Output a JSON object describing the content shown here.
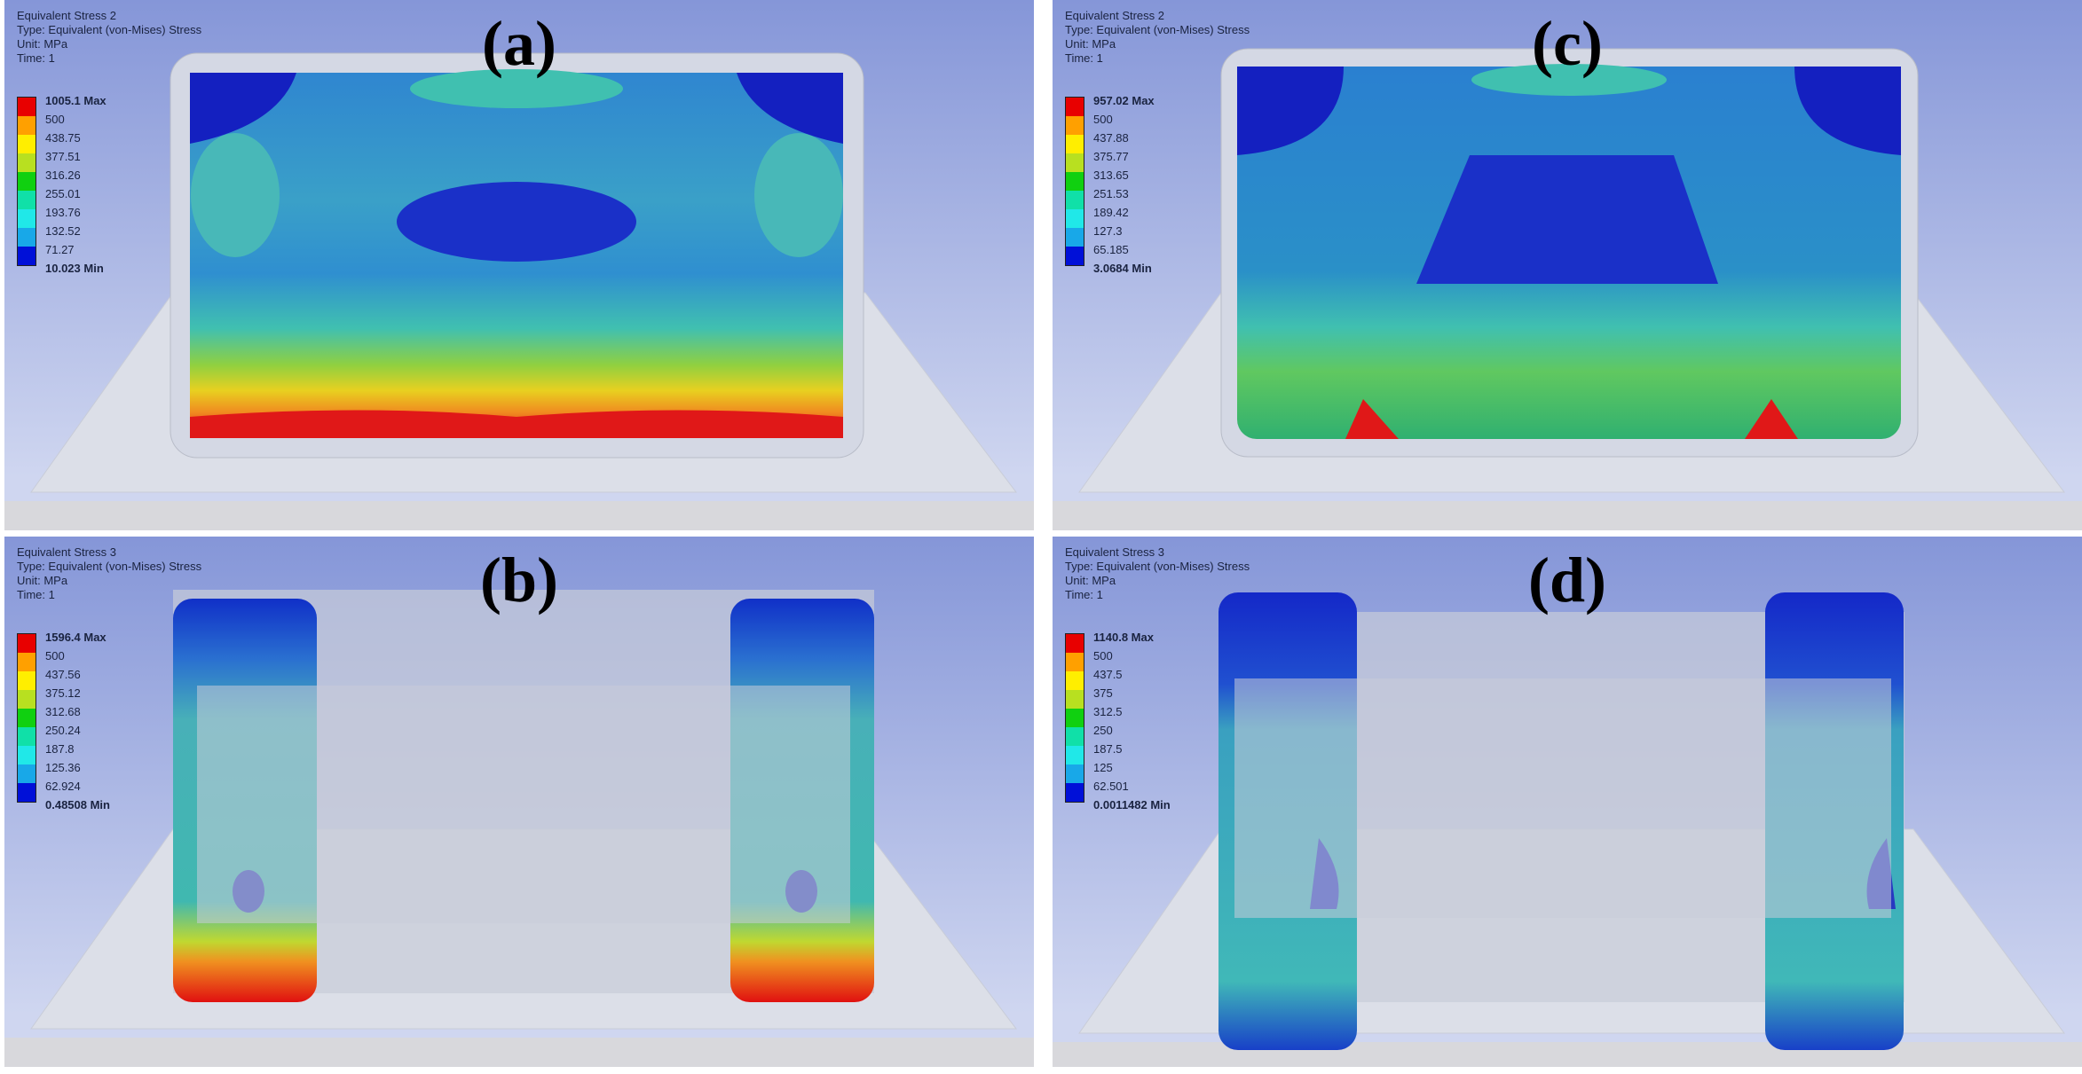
{
  "legend_colors": [
    "#e80000",
    "#ffa000",
    "#ffee00",
    "#b8e020",
    "#10d010",
    "#10e0a8",
    "#20e8e8",
    "#18a8e8",
    "#0010d8"
  ],
  "panels": [
    {
      "id": "a",
      "label": "(a)",
      "info": [
        "Equivalent Stress 2",
        "Type: Equivalent (von-Mises) Stress",
        "Unit: MPa",
        "Time: 1"
      ],
      "legend": [
        "1005.1 Max",
        "500",
        "438.75",
        "377.51",
        "316.26",
        "255.01",
        "193.76",
        "132.52",
        "71.27",
        "10.023 Min"
      ]
    },
    {
      "id": "b",
      "label": "(b)",
      "info": [
        "Equivalent Stress 3",
        "Type: Equivalent (von-Mises) Stress",
        "Unit: MPa",
        "Time: 1"
      ],
      "legend": [
        "1596.4 Max",
        "500",
        "437.56",
        "375.12",
        "312.68",
        "250.24",
        "187.8",
        "125.36",
        "62.924",
        "0.48508 Min"
      ]
    },
    {
      "id": "c",
      "label": "(c)",
      "info": [
        "Equivalent Stress 2",
        "Type: Equivalent (von-Mises) Stress",
        "Unit: MPa",
        "Time: 1"
      ],
      "legend": [
        "957.02 Max",
        "500",
        "437.88",
        "375.77",
        "313.65",
        "251.53",
        "189.42",
        "127.3",
        "65.185",
        "3.0684 Min"
      ]
    },
    {
      "id": "d",
      "label": "(d)",
      "info": [
        "Equivalent Stress 3",
        "Type: Equivalent (von-Mises) Stress",
        "Unit: MPa",
        "Time: 1"
      ],
      "legend": [
        "1140.8 Max",
        "500",
        "437.5",
        "375",
        "312.5",
        "250",
        "187.5",
        "125",
        "62.501",
        "0.0011482 Min"
      ]
    }
  ]
}
